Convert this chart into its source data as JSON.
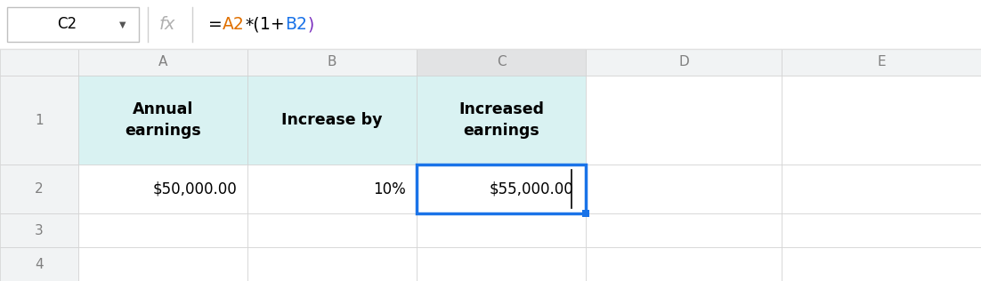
{
  "cell_ref": "C2",
  "formula_parts": [
    [
      "=",
      "#000000"
    ],
    [
      "A2",
      "#e07000"
    ],
    [
      "*(",
      "#000000"
    ],
    [
      "1+",
      "#000000"
    ],
    [
      "B2",
      "#1a73e8"
    ],
    [
      ")",
      "#7b2fbe"
    ]
  ],
  "col_headers": [
    "A",
    "B",
    "C",
    "D",
    "E"
  ],
  "row_numbers": [
    "1",
    "2",
    "3",
    "4"
  ],
  "header_bg": "#f1f3f4",
  "col_C_header_bg": "#e2e3e4",
  "cell_bg_cyan": "#d9f2f2",
  "cell_bg_white": "#ffffff",
  "cell_selected_border": "#1a73e8",
  "grid_color": "#d0d0d0",
  "row_num_bg": "#f1f3f4",
  "formula_bar_bg": "#ffffff",
  "top_separator": "#e0e0e0",
  "row1_A": "Annual\nearnings",
  "row1_B": "Increase by",
  "row1_C": "Increased\nearnings",
  "row2_A": "$50,000.00",
  "row2_B": "10%",
  "row2_C": "$55,000.00",
  "fx_color": "#b0b0b0",
  "arrow_color": "#555555"
}
